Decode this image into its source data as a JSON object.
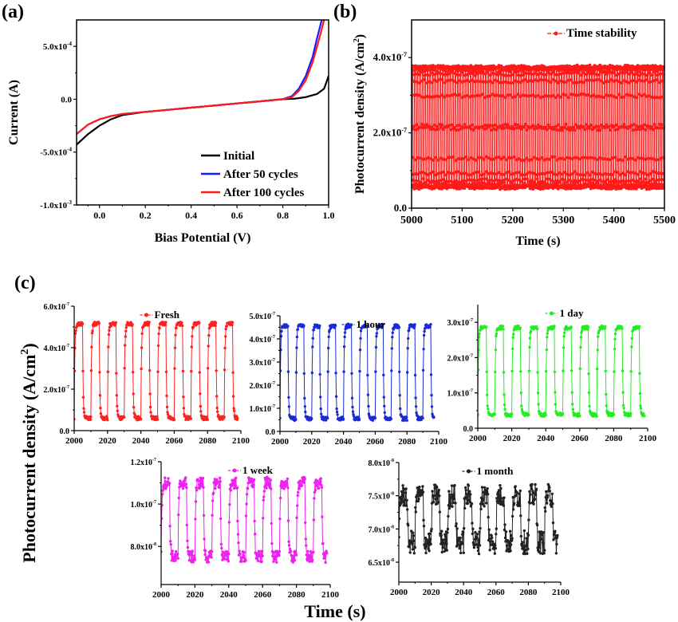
{
  "panel_labels": {
    "a": "(a)",
    "b": "(b)",
    "c": "(c)"
  },
  "shared_c": {
    "ylabel": "Photocurrent density (A/cm",
    "ylabel_sup": "2",
    "ylabel_close": ")",
    "xlabel": "Time (s)"
  },
  "chart_data": [
    {
      "id": "a",
      "type": "line",
      "title": "",
      "xlabel": "Bias Potential (V)",
      "ylabel": "Current (A)",
      "xlim": [
        -0.1,
        1.0
      ],
      "ylim": [
        -0.001,
        0.00075
      ],
      "xticks": [
        0.0,
        0.2,
        0.4,
        0.6,
        0.8,
        1.0
      ],
      "xtick_labels": [
        "0.0",
        "0.2",
        "0.4",
        "0.6",
        "0.8",
        "1.0"
      ],
      "yticks": [
        0.0005,
        0.0,
        -0.0005,
        -0.001
      ],
      "ytick_labels": [
        "5.0x10",
        "0.0",
        "-5.0x10",
        "-1.0x10"
      ],
      "ytick_exps": [
        "-4",
        "",
        "-4",
        "-3"
      ],
      "legend": "bottom-right",
      "series": [
        {
          "name": "Initial",
          "color": "#000000",
          "x": [
            -0.1,
            -0.05,
            0.0,
            0.05,
            0.1,
            0.2,
            0.3,
            0.4,
            0.5,
            0.6,
            0.7,
            0.8,
            0.85,
            0.9,
            0.95,
            0.98,
            1.0
          ],
          "y": [
            -0.00043,
            -0.00033,
            -0.00025,
            -0.00019,
            -0.00015,
            -0.00012,
            -0.0001,
            -8e-05,
            -6e-05,
            -4e-05,
            -2e-05,
            0.0,
            5e-06,
            2e-05,
            5e-05,
            0.0001,
            0.00022
          ]
        },
        {
          "name": "After 50 cycles",
          "color": "#1a1aff",
          "x": [
            -0.1,
            -0.05,
            0.0,
            0.05,
            0.1,
            0.2,
            0.3,
            0.4,
            0.5,
            0.6,
            0.7,
            0.8,
            0.84,
            0.87,
            0.9,
            0.93,
            0.95,
            0.97
          ],
          "y": [
            -0.00033,
            -0.00024,
            -0.00019,
            -0.00016,
            -0.00014,
            -0.00012,
            -0.0001,
            -8e-05,
            -6e-05,
            -4e-05,
            -2e-05,
            0.0,
            3e-05,
            0.0001,
            0.00022,
            0.0004,
            0.00058,
            0.00075
          ]
        },
        {
          "name": "After 100 cycles",
          "color": "#ff1a1a",
          "x": [
            -0.1,
            -0.05,
            0.0,
            0.05,
            0.1,
            0.2,
            0.3,
            0.4,
            0.5,
            0.6,
            0.7,
            0.8,
            0.84,
            0.87,
            0.9,
            0.93,
            0.96,
            0.98
          ],
          "y": [
            -0.00033,
            -0.00024,
            -0.00019,
            -0.00016,
            -0.00014,
            -0.00012,
            -0.0001,
            -8e-05,
            -6e-05,
            -4e-05,
            -2e-05,
            0.0,
            2e-05,
            8e-05,
            0.00018,
            0.00035,
            0.00058,
            0.00075
          ]
        }
      ]
    },
    {
      "id": "b",
      "type": "line",
      "title": "",
      "xlabel": "Time (s)",
      "ylabel": "Photocurrent density (A/cm",
      "ylabel_sup": "2",
      "xlim": [
        5000,
        5500
      ],
      "ylim": [
        0,
        5e-07
      ],
      "xticks": [
        5000,
        5100,
        5200,
        5300,
        5400,
        5500
      ],
      "xtick_labels": [
        "5000",
        "5100",
        "5200",
        "5300",
        "5400",
        "5500"
      ],
      "yticks": [
        0,
        2e-07,
        4e-07
      ],
      "ytick_labels": [
        "0.0",
        "2.0x10",
        "4.0x10"
      ],
      "ytick_exps": [
        "",
        "-7",
        "-7"
      ],
      "legend": "top-right",
      "series": [
        {
          "name": "Time stability",
          "color": "#ff1a1a",
          "marker": "circle",
          "pattern": {
            "period_s": 5,
            "high": 3.75e-07,
            "low": 5.5e-08,
            "x_start": 5000,
            "x_end": 5500
          }
        }
      ]
    },
    {
      "id": "c-fresh",
      "type": "line",
      "xlim": [
        2000,
        2100
      ],
      "ylim": [
        0,
        6e-07
      ],
      "xticks": [
        2000,
        2020,
        2040,
        2060,
        2080,
        2100
      ],
      "xtick_labels": [
        "2000",
        "2020",
        "2040",
        "2060",
        "2080",
        "2100"
      ],
      "yticks": [
        0,
        2e-07,
        4e-07,
        6e-07
      ],
      "ytick_labels": [
        "0.0",
        "2.0x10",
        "4.0x10",
        "6.0x10"
      ],
      "ytick_exps": [
        "",
        "-7",
        "-7",
        "-7"
      ],
      "legend": "top-center",
      "series": [
        {
          "name": "Fresh",
          "color": "#ff2020",
          "marker": "circle",
          "pattern": {
            "period_s": 10,
            "high": 5.15e-07,
            "low": 6e-08,
            "x_start": 2000,
            "x_end": 2098,
            "noise": 0.02
          }
        }
      ]
    },
    {
      "id": "c-1hour",
      "type": "line",
      "xlim": [
        2000,
        2100
      ],
      "ylim": [
        0,
        5e-07
      ],
      "xticks": [
        2000,
        2020,
        2040,
        2060,
        2080,
        2100
      ],
      "xtick_labels": [
        "2000",
        "2020",
        "2040",
        "2060",
        "2080",
        "2100"
      ],
      "yticks": [
        0,
        1e-07,
        2e-07,
        3e-07,
        4e-07,
        5e-07
      ],
      "ytick_labels": [
        "0.0",
        "1.0x10",
        "2.0x10",
        "3.0x10",
        "4.0x10",
        "5.0x10"
      ],
      "ytick_exps": [
        "",
        "-7",
        "-7",
        "-7",
        "-7",
        "-7"
      ],
      "legend": "top-center",
      "series": [
        {
          "name": "1 hour",
          "color": "#1a2bd6",
          "marker": "circle",
          "pattern": {
            "period_s": 10,
            "high": 4.55e-07,
            "low": 5.5e-08,
            "x_start": 2000,
            "x_end": 2097,
            "noise": 0.02
          }
        }
      ]
    },
    {
      "id": "c-1day",
      "type": "line",
      "xlim": [
        2000,
        2100
      ],
      "ylim": [
        0,
        3.5e-07
      ],
      "xticks": [
        2000,
        2020,
        2040,
        2060,
        2080,
        2100
      ],
      "xtick_labels": [
        "2000",
        "2020",
        "2040",
        "2060",
        "2080",
        "2100"
      ],
      "yticks": [
        0,
        1e-07,
        2e-07,
        3e-07
      ],
      "ytick_labels": [
        "0.0",
        "1.0x10",
        "2.0x10",
        "3.0x10"
      ],
      "ytick_exps": [
        "",
        "-7",
        "-7",
        "-7"
      ],
      "legend": "top-center",
      "series": [
        {
          "name": "1 day",
          "color": "#22ee22",
          "marker": "circle",
          "pattern": {
            "period_s": 10,
            "high": 2.85e-07,
            "low": 3.8e-08,
            "x_start": 2000,
            "x_end": 2098,
            "noise": 0.02
          }
        }
      ]
    },
    {
      "id": "c-1week",
      "type": "line",
      "xlim": [
        2000,
        2100
      ],
      "ylim": [
        6.2e-08,
        1.2e-07
      ],
      "xticks": [
        2000,
        2020,
        2040,
        2060,
        2080,
        2100
      ],
      "xtick_labels": [
        "2000",
        "2020",
        "2040",
        "2060",
        "2080",
        "2100"
      ],
      "yticks": [
        8e-08,
        1e-07,
        1.2e-07
      ],
      "ytick_labels": [
        "8.0x10",
        "1.0x10",
        "1.2x10"
      ],
      "ytick_exps": [
        "-8",
        "-7",
        "-7"
      ],
      "legend": "top-center",
      "series": [
        {
          "name": "1 week",
          "color": "#ee22ee",
          "marker": "circle",
          "pattern": {
            "period_s": 10,
            "high": 1.1e-07,
            "low": 7.5e-08,
            "x_start": 2000,
            "x_end": 2098,
            "noise": 0.08
          }
        }
      ]
    },
    {
      "id": "c-1month",
      "type": "line",
      "xlim": [
        2000,
        2100
      ],
      "ylim": [
        6.2e-08,
        8e-08
      ],
      "xticks": [
        2000,
        2020,
        2040,
        2060,
        2080,
        2100
      ],
      "xtick_labels": [
        "2000",
        "2020",
        "2040",
        "2060",
        "2080",
        "2100"
      ],
      "yticks": [
        6.5e-08,
        7e-08,
        7.5e-08,
        8e-08
      ],
      "ytick_labels": [
        "6.5x10",
        "7.0x10",
        "7.5x10",
        "8.0x10"
      ],
      "ytick_exps": [
        "-8",
        "-8",
        "-8",
        "-8"
      ],
      "legend": "top-center",
      "series": [
        {
          "name": "1 month",
          "color": "#222222",
          "marker": "circle",
          "pattern": {
            "period_s": 10,
            "high": 7.5e-08,
            "low": 6.8e-08,
            "x_start": 2000,
            "x_end": 2098,
            "noise": 0.25
          }
        }
      ]
    }
  ]
}
